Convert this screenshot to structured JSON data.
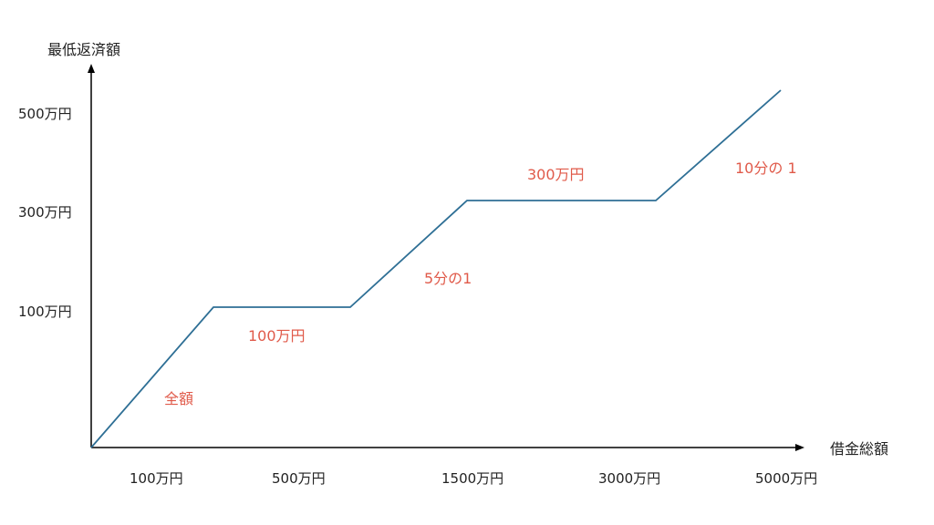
{
  "chart_data": {
    "type": "line",
    "xlabel": "借金総額",
    "ylabel": "最低返済額",
    "x_tick_labels": [
      "100万円",
      "500万円",
      "1500万円",
      "3000万円",
      "5000万円"
    ],
    "y_tick_labels": [
      "100万円",
      "300万円",
      "500万円"
    ],
    "series": [
      {
        "points": [
          {
            "x": 0,
            "y": 0
          },
          {
            "x": 100,
            "y": 100
          },
          {
            "x": 500,
            "y": 100
          },
          {
            "x": 1500,
            "y": 300
          },
          {
            "x": 3000,
            "y": 300
          },
          {
            "x": 5000,
            "y": 500
          }
        ]
      }
    ],
    "annotations": [
      "全額",
      "100万円",
      "5分の1",
      "300万円",
      "10分の 1"
    ],
    "grid": false,
    "legend": "none"
  },
  "colors": {
    "line": "#2e6f95",
    "axis": "#000000",
    "annotation": "#e05a4a",
    "text": "#222222"
  }
}
